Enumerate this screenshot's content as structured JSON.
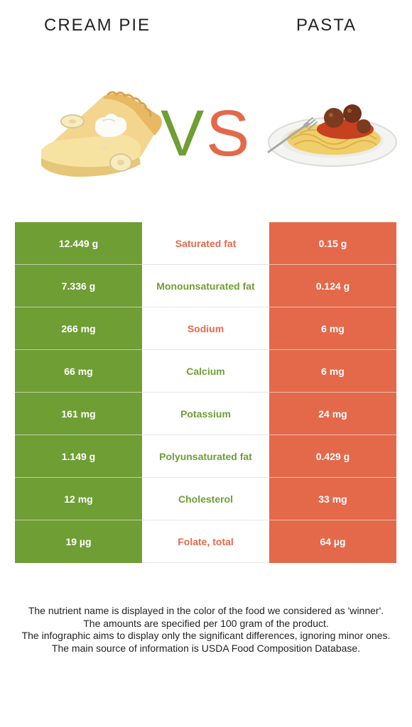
{
  "header": {
    "left_food": "CREAM PIE",
    "right_food": "PASTA",
    "vs_letters": [
      "V",
      "S"
    ]
  },
  "colors": {
    "left_food": "#6f9e35",
    "right_food": "#e3694a"
  },
  "images": {
    "left": "cream-pie-slice-illustration",
    "right": "spaghetti-meatballs-illustration"
  },
  "rows": [
    {
      "left": "12.449 g",
      "nutrient": "Saturated fat",
      "right": "0.15 g",
      "winner": "right"
    },
    {
      "left": "7.336 g",
      "nutrient": "Monounsaturated fat",
      "right": "0.124 g",
      "winner": "left"
    },
    {
      "left": "266 mg",
      "nutrient": "Sodium",
      "right": "6 mg",
      "winner": "right"
    },
    {
      "left": "66 mg",
      "nutrient": "Calcium",
      "right": "6 mg",
      "winner": "left"
    },
    {
      "left": "161 mg",
      "nutrient": "Potassium",
      "right": "24 mg",
      "winner": "left"
    },
    {
      "left": "1.149 g",
      "nutrient": "Polyunsaturated fat",
      "right": "0.429 g",
      "winner": "left"
    },
    {
      "left": "12 mg",
      "nutrient": "Cholesterol",
      "right": "33 mg",
      "winner": "left"
    },
    {
      "left": "19 µg",
      "nutrient": "Folate, total",
      "right": "64 µg",
      "winner": "right"
    }
  ],
  "footnote": [
    "The nutrient name is displayed in the color of the food we considered as 'winner'.",
    "The amounts are specified per 100 gram of the product.",
    "The infographic aims to display only the significant differences, ignoring minor ones.",
    "The main source of information is USDA Food Composition Database."
  ]
}
